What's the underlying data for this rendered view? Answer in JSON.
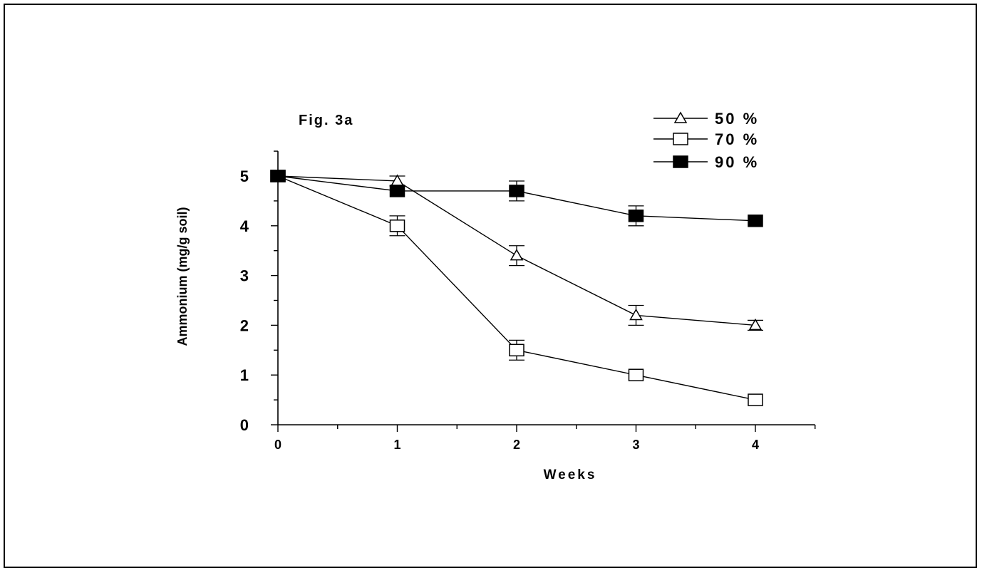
{
  "chart_data": {
    "type": "line",
    "title": "Fig. 3a",
    "xlabel": "Weeks",
    "ylabel": "Ammonium (mg/g soil)",
    "x": [
      0,
      1,
      2,
      3,
      4
    ],
    "xlim": [
      0,
      4.5
    ],
    "ylim": [
      0,
      5.5
    ],
    "x_ticks": [
      0,
      1,
      2,
      3,
      4
    ],
    "y_ticks": [
      0,
      1,
      2,
      3,
      4,
      5
    ],
    "grid": false,
    "legend_position": "top-right",
    "series": [
      {
        "name": "50 %",
        "marker": "open-triangle",
        "values": [
          5.0,
          4.9,
          3.4,
          2.2,
          2.0
        ],
        "errors": [
          0,
          0.1,
          0.2,
          0.2,
          0.1
        ]
      },
      {
        "name": "70 %",
        "marker": "open-square",
        "values": [
          5.0,
          4.0,
          1.5,
          1.0,
          0.5
        ],
        "errors": [
          0,
          0.2,
          0.2,
          0,
          0
        ]
      },
      {
        "name": "90 %",
        "marker": "filled-square",
        "values": [
          5.0,
          4.7,
          4.7,
          4.2,
          4.1
        ],
        "errors": [
          0,
          0,
          0.2,
          0.2,
          0
        ]
      }
    ],
    "colors": {
      "line": "#000000",
      "background": "#ffffff"
    }
  }
}
